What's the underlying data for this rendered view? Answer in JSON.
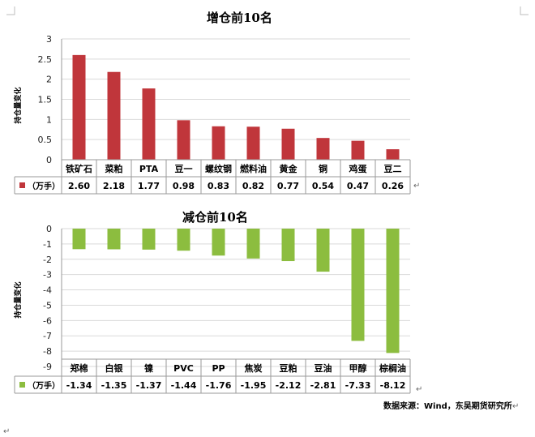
{
  "chart_data": [
    {
      "type": "bar",
      "title": "增仓前10名",
      "ylabel": "持仓量变化",
      "unit_label": "（万手）",
      "ylim": [
        0,
        3
      ],
      "yticks": [
        0,
        0.5,
        1,
        1.5,
        2,
        2.5,
        3
      ],
      "ytick_labels": [
        "0",
        "0.5",
        "1",
        "1.5",
        "2",
        "2.5",
        "3"
      ],
      "categories": [
        "铁矿石",
        "菜粕",
        "PTA",
        "豆一",
        "螺纹钢",
        "燃料油",
        "黄金",
        "铜",
        "鸡蛋",
        "豆二"
      ],
      "values": [
        2.6,
        2.18,
        1.77,
        0.98,
        0.83,
        0.82,
        0.77,
        0.54,
        0.47,
        0.26
      ],
      "value_labels": [
        "2.60",
        "2.18",
        "1.77",
        "0.98",
        "0.83",
        "0.82",
        "0.77",
        "0.54",
        "0.47",
        "0.26"
      ],
      "color": "#c0363b",
      "grid": true,
      "legend": "data-table-left"
    },
    {
      "type": "bar",
      "title": "减仓前10名",
      "ylabel": "持仓量变化",
      "unit_label": "（万手）",
      "ylim": [
        -9,
        0
      ],
      "yticks": [
        0,
        -1,
        -2,
        -3,
        -4,
        -5,
        -6,
        -7,
        -8,
        -9
      ],
      "ytick_labels": [
        "0",
        "-1",
        "-2",
        "-3",
        "-4",
        "-5",
        "-6",
        "-7",
        "-8",
        "-9"
      ],
      "categories": [
        "郑棉",
        "白银",
        "镍",
        "PVC",
        "PP",
        "焦炭",
        "豆粕",
        "豆油",
        "甲醇",
        "棕榈油"
      ],
      "values": [
        -1.34,
        -1.35,
        -1.37,
        -1.44,
        -1.76,
        -1.95,
        -2.12,
        -2.81,
        -7.33,
        -8.12
      ],
      "value_labels": [
        "-1.34",
        "-1.35",
        "-1.37",
        "-1.44",
        "-1.76",
        "-1.95",
        "-2.12",
        "-2.81",
        "-7.33",
        "-8.12"
      ],
      "color": "#8cbd3f",
      "grid": true,
      "legend": "data-table-left"
    }
  ],
  "source_text": "数据来源：Wind，东吴期货研究所",
  "return_mark": "↵"
}
